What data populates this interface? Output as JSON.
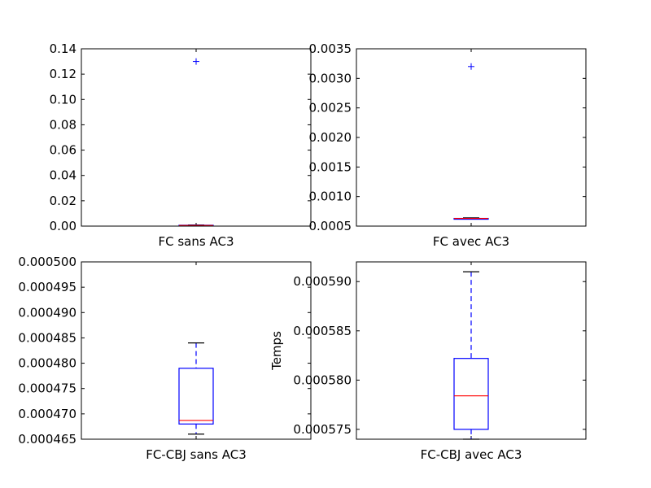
{
  "chart_data": [
    {
      "type": "box",
      "xlabel": "FC sans AC3",
      "ylabel": "",
      "ylim": [
        0.0,
        0.14
      ],
      "yticks": [
        0.0,
        0.02,
        0.04,
        0.06,
        0.08,
        0.1,
        0.12,
        0.14
      ],
      "ytick_labels": [
        "0.00",
        "0.02",
        "0.04",
        "0.06",
        "0.08",
        "0.10",
        "0.12",
        "0.14"
      ],
      "box": {
        "whisker_low": 0.0002,
        "q1": 0.0004,
        "median": 0.0005,
        "q3": 0.0007,
        "whisker_high": 0.0009,
        "outliers": [
          0.13
        ]
      }
    },
    {
      "type": "box",
      "xlabel": "FC avec AC3",
      "ylabel": "",
      "ylim": [
        0.0005,
        0.0035
      ],
      "yticks": [
        0.0005,
        0.001,
        0.0015,
        0.002,
        0.0025,
        0.003,
        0.0035
      ],
      "ytick_labels": [
        "0.0005",
        "0.0010",
        "0.0015",
        "0.0020",
        "0.0025",
        "0.0030",
        "0.0035"
      ],
      "box": {
        "whisker_low": 0.00062,
        "q1": 0.00062,
        "median": 0.00063,
        "q3": 0.00063,
        "whisker_high": 0.00064,
        "outliers": [
          0.0032
        ]
      }
    },
    {
      "type": "box",
      "xlabel": "FC-CBJ sans AC3",
      "ylabel": "",
      "ylim": [
        0.000465,
        0.0005
      ],
      "yticks": [
        0.000465,
        0.00047,
        0.000475,
        0.00048,
        0.000485,
        0.00049,
        0.000495,
        0.0005
      ],
      "ytick_labels": [
        "0.000465",
        "0.000470",
        "0.000475",
        "0.000480",
        "0.000485",
        "0.000490",
        "0.000495",
        "0.000500"
      ],
      "box": {
        "whisker_low": 0.000466,
        "q1": 0.000468,
        "median": 0.0004687,
        "q3": 0.000479,
        "whisker_high": 0.000484,
        "outliers": []
      }
    },
    {
      "type": "box",
      "xlabel": "FC-CBJ avec AC3",
      "ylabel": "Temps",
      "ylim": [
        0.000574,
        0.000592
      ],
      "yticks": [
        0.000575,
        0.00058,
        0.000585,
        0.00059
      ],
      "ytick_labels": [
        "0.000575",
        "0.000580",
        "0.000585",
        "0.000590"
      ],
      "box": {
        "whisker_low": 0.000574,
        "q1": 0.000575,
        "median": 0.0005784,
        "q3": 0.0005822,
        "whisker_high": 0.000591,
        "outliers": []
      }
    }
  ],
  "colors": {
    "box": "#0000ff",
    "median": "#ff0000",
    "cap": "#000000",
    "outlier": "#0000ff"
  }
}
